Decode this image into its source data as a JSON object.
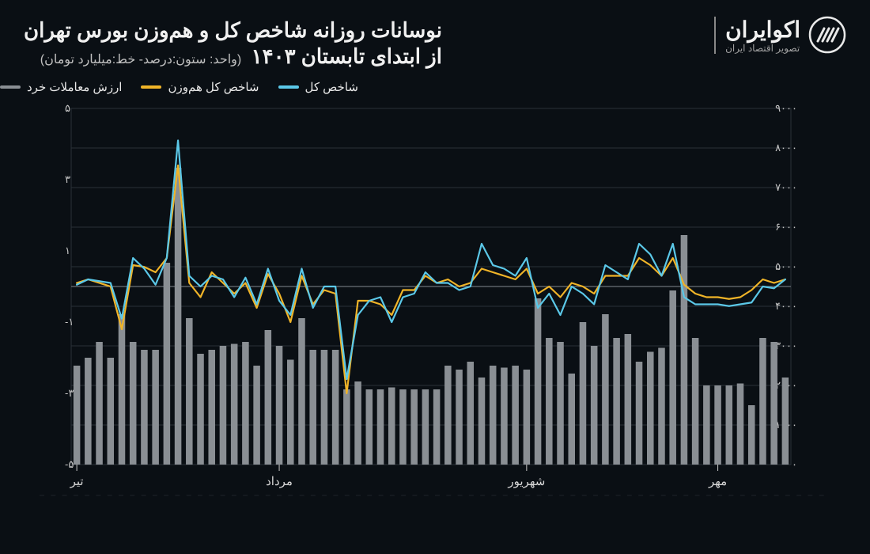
{
  "header": {
    "title_line1": "نوسانات روزانه شاخص کل و هم‌وزن بورس تهران",
    "title_line2": "از ابتدای تابستان ۱۴۰۳",
    "unit_label": "(واحد: ستون:درصد- خط:میلیارد تومان)",
    "logo_name": "اکوایران",
    "logo_tag": "تصویر اقتصاد ایران"
  },
  "legend": [
    {
      "label": "شاخص کل",
      "color": "#5bc8e8"
    },
    {
      "label": "شاخص کل هم‌وزن",
      "color": "#f0b428"
    },
    {
      "label": "ارزش معاملات خرد",
      "color": "#8a8f94"
    }
  ],
  "chart": {
    "type": "combo-bar-line",
    "background_color": "#0a0f14",
    "plot_bg": "#0a0f14",
    "grid_color": "#2a3038",
    "zero_line_color": "#6a7078",
    "axis_text_color": "#c8c8c8",
    "left_axis": {
      "min": -5,
      "max": 5,
      "ticks": [
        -5,
        -3,
        -1,
        1,
        3,
        5
      ],
      "labels": [
        "۵-",
        "۳-",
        "۱-",
        "۱",
        "۳",
        "۵"
      ]
    },
    "right_axis": {
      "min": 0,
      "max": 9000,
      "ticks": [
        0,
        1000,
        2000,
        3000,
        4000,
        5000,
        6000,
        7000,
        8000,
        9000
      ],
      "labels": [
        "۰",
        "۱۰۰۰",
        "۲۰۰۰",
        "۳۰۰۰",
        "۴۰۰۰",
        "۵۰۰۰",
        "۶۰۰۰",
        "۷۰۰۰",
        "۸۰۰۰",
        "۹۰۰۰"
      ]
    },
    "month_markers": [
      {
        "label": "تیر",
        "index": 0
      },
      {
        "label": "مرداد",
        "index": 18
      },
      {
        "label": "شهریور",
        "index": 40
      },
      {
        "label": "مهر",
        "index": 57
      }
    ],
    "bars": {
      "color": "#8a8f94",
      "width_ratio": 0.6,
      "values": [
        2500,
        2700,
        3100,
        2700,
        3800,
        3100,
        2900,
        2900,
        5100,
        7500,
        3700,
        2800,
        2900,
        3000,
        3050,
        3100,
        2500,
        3400,
        3000,
        2650,
        3700,
        2900,
        2900,
        2900,
        1900,
        2100,
        1900,
        1900,
        1950,
        1900,
        1900,
        1900,
        1900,
        2500,
        2400,
        2600,
        2200,
        2500,
        2450,
        2500,
        2400,
        4200,
        3200,
        3100,
        2300,
        3600,
        3000,
        3800,
        3200,
        3300,
        2600,
        2850,
        2950,
        4400,
        5800,
        3200,
        2000,
        2000,
        2000,
        2050,
        1500,
        3200,
        3100,
        2200
      ]
    },
    "line_total": {
      "color": "#5bc8e8",
      "width": 2.2,
      "values": [
        0.05,
        0.2,
        0.15,
        0.1,
        -0.9,
        0.8,
        0.5,
        0.05,
        0.8,
        4.1,
        0.3,
        0.0,
        0.3,
        0.2,
        -0.3,
        0.25,
        -0.5,
        0.5,
        -0.4,
        -0.8,
        0.5,
        -0.6,
        0.0,
        0.0,
        -2.6,
        -0.8,
        -0.4,
        -0.3,
        -1.0,
        -0.3,
        -0.2,
        0.4,
        0.1,
        0.1,
        -0.1,
        0.0,
        1.2,
        0.6,
        0.5,
        0.3,
        0.8,
        -0.6,
        -0.2,
        -0.8,
        0.0,
        -0.2,
        -0.5,
        0.6,
        0.4,
        0.2,
        1.2,
        0.9,
        0.3,
        1.2,
        -0.3,
        -0.5,
        -0.5,
        -0.5,
        -0.55,
        -0.5,
        -0.45,
        0.0,
        -0.05,
        0.2
      ]
    },
    "line_equal": {
      "color": "#f0b428",
      "width": 2.2,
      "values": [
        0.1,
        0.2,
        0.1,
        0.0,
        -1.2,
        0.6,
        0.55,
        0.4,
        0.8,
        3.4,
        0.1,
        -0.3,
        0.4,
        0.1,
        -0.2,
        0.1,
        -0.6,
        0.35,
        -0.2,
        -1.0,
        0.3,
        -0.5,
        -0.1,
        -0.2,
        -3.0,
        -0.4,
        -0.4,
        -0.5,
        -0.8,
        -0.1,
        -0.1,
        0.3,
        0.1,
        0.2,
        0.0,
        0.1,
        0.5,
        0.4,
        0.3,
        0.2,
        0.5,
        -0.2,
        0.0,
        -0.3,
        0.1,
        0.0,
        -0.2,
        0.3,
        0.3,
        0.3,
        0.8,
        0.6,
        0.3,
        0.8,
        0.05,
        -0.2,
        -0.3,
        -0.3,
        -0.35,
        -0.3,
        -0.1,
        0.2,
        0.1,
        0.2
      ]
    }
  }
}
